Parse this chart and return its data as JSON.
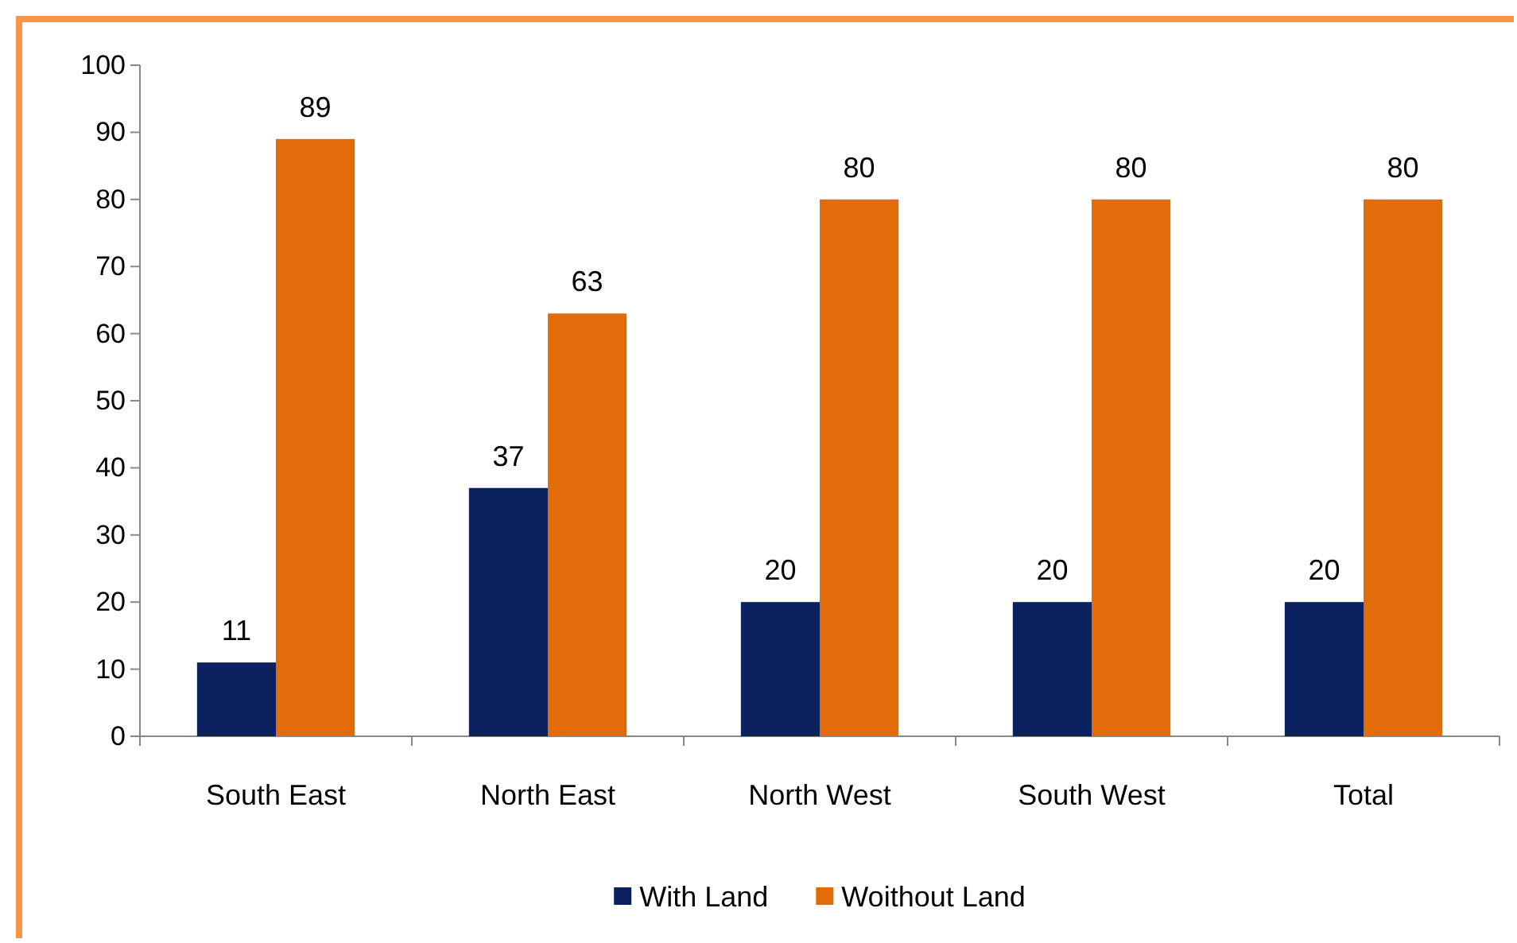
{
  "chart_data": {
    "type": "bar",
    "categories": [
      "South East",
      "North East",
      "North West",
      "South West",
      "Total"
    ],
    "series": [
      {
        "name": "With Land",
        "color": "#0c2260",
        "values": [
          11,
          37,
          20,
          20,
          20
        ]
      },
      {
        "name": "Woithout Land",
        "color": "#e36c0a",
        "values": [
          89,
          63,
          80,
          80,
          80
        ]
      }
    ],
    "ylim": [
      0,
      100
    ],
    "yticks": [
      0,
      10,
      20,
      30,
      40,
      50,
      60,
      70,
      80,
      90,
      100
    ],
    "data_labels": true,
    "legend": "bottom",
    "grid": false
  }
}
